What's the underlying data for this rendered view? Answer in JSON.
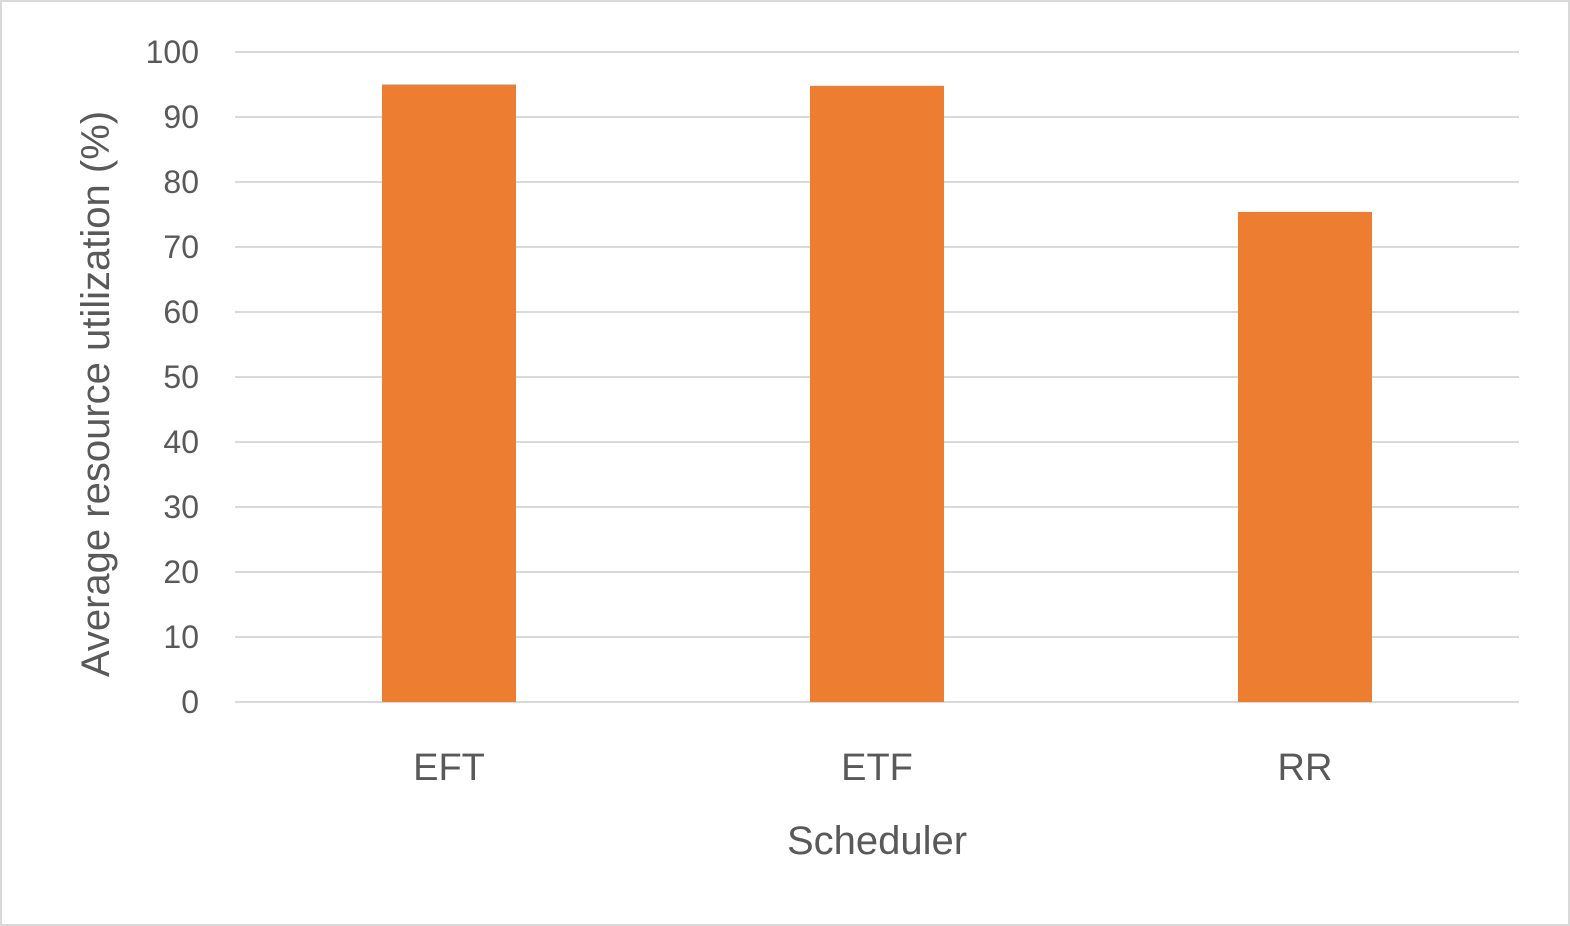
{
  "chart_data": {
    "type": "bar",
    "categories": [
      "EFT",
      "ETF",
      "RR"
    ],
    "values": [
      95.0,
      94.8,
      75.4
    ],
    "xlabel": "Scheduler",
    "ylabel": "Average resource utilization (%)",
    "ylim": [
      0,
      100
    ],
    "yticks": [
      0,
      10,
      20,
      30,
      40,
      50,
      60,
      70,
      80,
      90,
      100
    ],
    "grid": true,
    "legend": "none",
    "colors": {
      "bar": "#ed7d31",
      "grid": "#d9d9d9",
      "text": "#595959",
      "border": "#d9d9d9"
    }
  }
}
